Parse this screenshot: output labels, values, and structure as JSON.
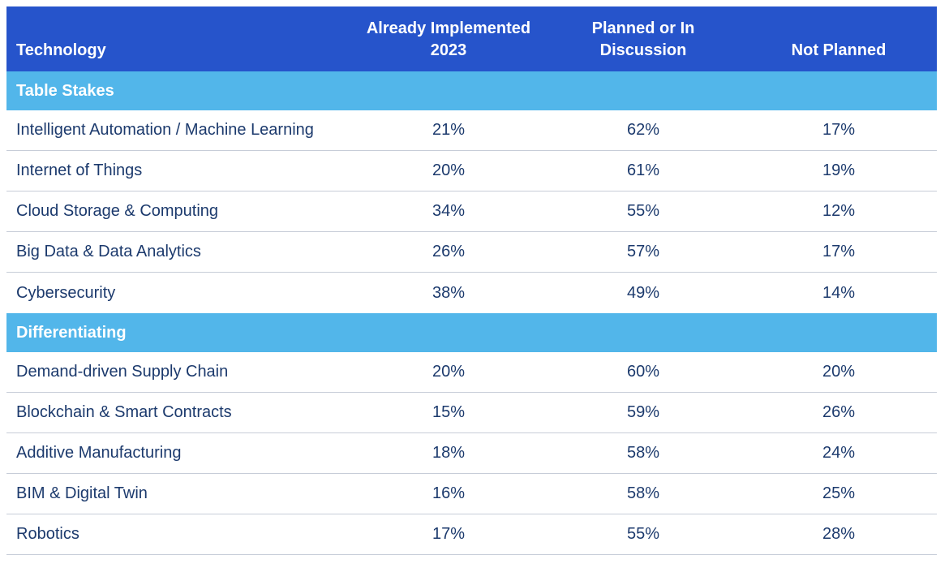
{
  "colors": {
    "header_bg": "#2654cb",
    "section_band_bg": "#52b6ea",
    "row_text": "#1c3a6d",
    "header_text": "#ffffff",
    "separator": "#c7cdd8"
  },
  "table": {
    "columns": [
      {
        "lines": [
          "Technology"
        ]
      },
      {
        "lines": [
          "Already Implemented",
          "2023"
        ]
      },
      {
        "lines": [
          "Planned or In",
          "Discussion"
        ]
      },
      {
        "lines": [
          "Not Planned"
        ]
      }
    ],
    "sections": [
      {
        "label": "Table Stakes",
        "rows": [
          {
            "name": "Intelligent Automation / Machine Learning",
            "values": [
              "21%",
              "62%",
              "17%"
            ]
          },
          {
            "name": "Internet of Things",
            "values": [
              "20%",
              "61%",
              "19%"
            ]
          },
          {
            "name": "Cloud Storage & Computing",
            "values": [
              "34%",
              "55%",
              "12%"
            ]
          },
          {
            "name": "Big Data & Data Analytics",
            "values": [
              "26%",
              "57%",
              "17%"
            ]
          },
          {
            "name": "Cybersecurity",
            "values": [
              "38%",
              "49%",
              "14%"
            ]
          }
        ]
      },
      {
        "label": "Differentiating",
        "rows": [
          {
            "name": "Demand-driven Supply Chain",
            "values": [
              "20%",
              "60%",
              "20%"
            ]
          },
          {
            "name": "Blockchain & Smart Contracts",
            "values": [
              "15%",
              "59%",
              "26%"
            ]
          },
          {
            "name": "Additive Manufacturing",
            "values": [
              "18%",
              "58%",
              "24%"
            ]
          },
          {
            "name": "BIM & Digital Twin",
            "values": [
              "16%",
              "58%",
              "25%"
            ]
          },
          {
            "name": "Robotics",
            "values": [
              "17%",
              "55%",
              "28%"
            ]
          }
        ]
      }
    ]
  },
  "chart_data": {
    "type": "table",
    "columns": [
      "Technology",
      "Already Implemented 2023",
      "Planned or In Discussion",
      "Not Planned"
    ],
    "sections": [
      {
        "name": "Table Stakes",
        "rows": [
          [
            "Intelligent Automation / Machine Learning",
            "21%",
            "62%",
            "17%"
          ],
          [
            "Internet of Things",
            "20%",
            "61%",
            "19%"
          ],
          [
            "Cloud Storage & Computing",
            "34%",
            "55%",
            "12%"
          ],
          [
            "Big Data & Data Analytics",
            "26%",
            "57%",
            "17%"
          ],
          [
            "Cybersecurity",
            "38%",
            "49%",
            "14%"
          ]
        ]
      },
      {
        "name": "Differentiating",
        "rows": [
          [
            "Demand-driven Supply Chain",
            "20%",
            "60%",
            "20%"
          ],
          [
            "Blockchain & Smart Contracts",
            "15%",
            "59%",
            "26%"
          ],
          [
            "Additive Manufacturing",
            "18%",
            "58%",
            "24%"
          ],
          [
            "BIM & Digital Twin",
            "16%",
            "58%",
            "25%"
          ],
          [
            "Robotics",
            "17%",
            "55%",
            "28%"
          ]
        ]
      }
    ]
  }
}
